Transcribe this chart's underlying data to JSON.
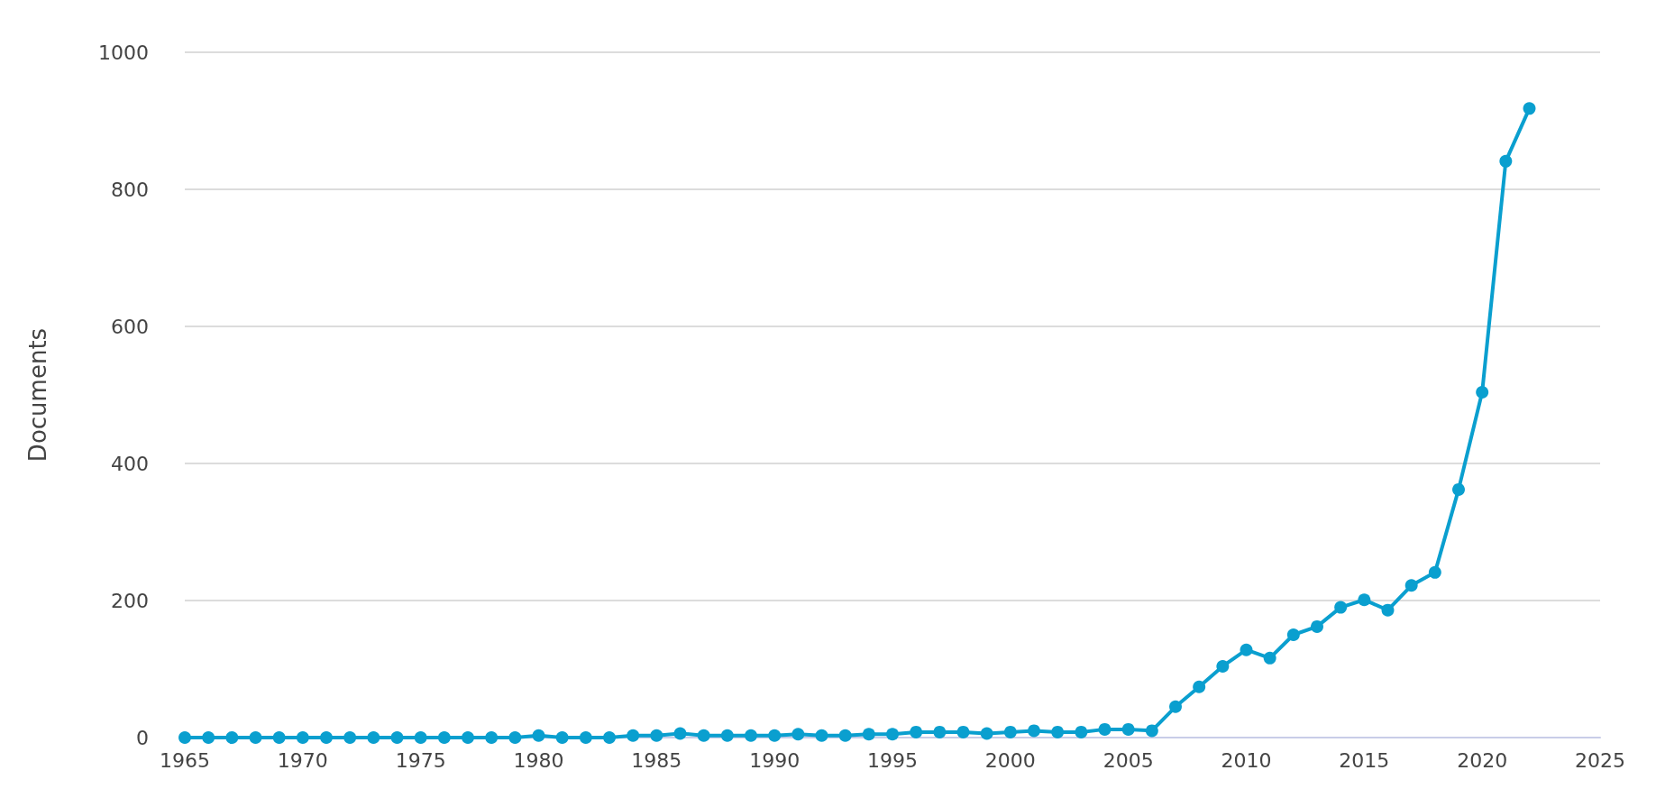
{
  "chart_data": {
    "type": "line",
    "ylabel": "Documents",
    "x": [
      1965,
      1966,
      1967,
      1968,
      1969,
      1970,
      1971,
      1972,
      1973,
      1974,
      1975,
      1976,
      1977,
      1978,
      1979,
      1980,
      1981,
      1982,
      1983,
      1984,
      1985,
      1986,
      1987,
      1988,
      1989,
      1990,
      1991,
      1992,
      1993,
      1994,
      1995,
      1996,
      1997,
      1998,
      1999,
      2000,
      2001,
      2002,
      2003,
      2004,
      2005,
      2006,
      2007,
      2008,
      2009,
      2010,
      2011,
      2012,
      2013,
      2014,
      2015,
      2016,
      2017,
      2018,
      2019,
      2020,
      2021,
      2022
    ],
    "series": [
      {
        "color": "#0a9fcf",
        "values": [
          0,
          0,
          0,
          0,
          0,
          0,
          0,
          0,
          0,
          0,
          0,
          0,
          0,
          0,
          0,
          3,
          0,
          0,
          0,
          3,
          3,
          6,
          3,
          3,
          3,
          3,
          5,
          3,
          3,
          5,
          5,
          8,
          8,
          8,
          6,
          8,
          10,
          8,
          8,
          12,
          12,
          10,
          45,
          74,
          104,
          128,
          116,
          150,
          162,
          190,
          201,
          186,
          222,
          241,
          362,
          504,
          841,
          918
        ]
      }
    ],
    "xlim": [
      1965,
      2025
    ],
    "xticks": [
      1965,
      1970,
      1975,
      1980,
      1985,
      1990,
      1995,
      2000,
      2005,
      2010,
      2015,
      2020,
      2025
    ],
    "ylim": [
      0,
      1000
    ],
    "yticks": [
      0,
      200,
      400,
      600,
      800,
      1000
    ],
    "grid": "y",
    "marker": "circle",
    "line_style": "solid"
  }
}
